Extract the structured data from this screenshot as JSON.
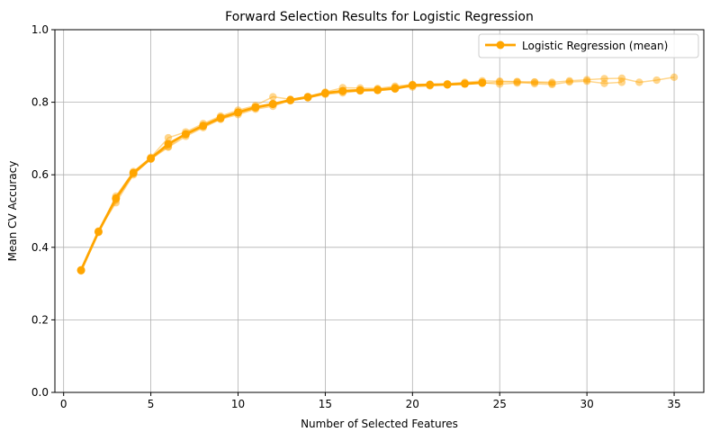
{
  "chart_data": {
    "type": "line",
    "title": "Forward Selection Results for Logistic Regression",
    "xlabel": "Number of Selected Features",
    "ylabel": "Mean CV Accuracy",
    "xlim": [
      -0.5,
      36.7
    ],
    "ylim": [
      0.0,
      1.0
    ],
    "xticks": [
      0,
      5,
      10,
      15,
      20,
      25,
      30,
      35
    ],
    "yticks": [
      0.0,
      0.2,
      0.4,
      0.6,
      0.8,
      1.0
    ],
    "grid": true,
    "legend_position": "top-right",
    "accent_color": "#FFA500",
    "series": [
      {
        "name": "Logistic Regression (mean)",
        "color": "#FFA500",
        "x": [
          1,
          2,
          3,
          4,
          5,
          6,
          7,
          8,
          9,
          10,
          11,
          12,
          13,
          14,
          15,
          16,
          17,
          18,
          19,
          20,
          21,
          22,
          23,
          24
        ],
        "y": [
          0.337,
          0.443,
          0.535,
          0.605,
          0.645,
          0.685,
          0.712,
          0.735,
          0.757,
          0.772,
          0.786,
          0.795,
          0.806,
          0.814,
          0.825,
          0.831,
          0.833,
          0.834,
          0.838,
          0.847,
          0.848,
          0.849,
          0.851,
          0.854
        ]
      }
    ],
    "runs": [
      {
        "x": [
          1,
          2,
          3,
          4,
          5,
          6,
          7,
          8,
          9,
          10,
          11,
          12,
          13,
          14,
          15,
          16,
          17,
          18,
          19,
          20,
          21,
          22,
          23,
          24,
          25,
          26,
          27,
          28,
          29,
          30,
          31,
          32
        ],
        "y": [
          0.335,
          0.445,
          0.523,
          0.6,
          0.643,
          0.676,
          0.706,
          0.73,
          0.753,
          0.766,
          0.781,
          0.789,
          0.805,
          0.812,
          0.822,
          0.826,
          0.831,
          0.835,
          0.841,
          0.842,
          0.845,
          0.848,
          0.852,
          0.852,
          0.856,
          0.856,
          0.851,
          0.849,
          0.856,
          0.858,
          0.852,
          0.855
        ]
      },
      {
        "x": [
          1,
          2,
          3,
          4,
          5,
          6,
          7,
          8,
          9,
          10,
          11,
          12,
          13,
          14,
          15,
          16,
          17,
          18,
          19,
          20,
          21,
          22,
          23,
          24,
          25,
          26,
          27,
          28,
          29,
          30,
          31,
          32,
          33,
          34,
          35
        ],
        "y": [
          0.338,
          0.441,
          0.541,
          0.609,
          0.648,
          0.702,
          0.718,
          0.741,
          0.762,
          0.778,
          0.791,
          0.815,
          0.808,
          0.816,
          0.828,
          0.84,
          0.839,
          0.838,
          0.844,
          0.849,
          0.85,
          0.851,
          0.855,
          0.859,
          0.858,
          0.857,
          0.856,
          0.855,
          0.859,
          0.862,
          0.865,
          0.866,
          0.855,
          0.861,
          0.869
        ]
      },
      {
        "x": [
          1,
          2,
          3,
          4,
          5,
          6,
          7,
          8,
          9,
          10,
          11,
          12,
          13,
          14,
          15,
          16,
          17,
          18,
          19,
          20,
          21,
          22,
          23,
          24,
          25,
          26,
          27,
          28
        ],
        "y": [
          0.336,
          0.443,
          0.53,
          0.604,
          0.645,
          0.678,
          0.712,
          0.734,
          0.754,
          0.771,
          0.784,
          0.797,
          0.804,
          0.814,
          0.826,
          0.83,
          0.832,
          0.832,
          0.836,
          0.845,
          0.847,
          0.848,
          0.852,
          0.854,
          0.85,
          0.853,
          0.855,
          0.852
        ]
      }
    ]
  }
}
